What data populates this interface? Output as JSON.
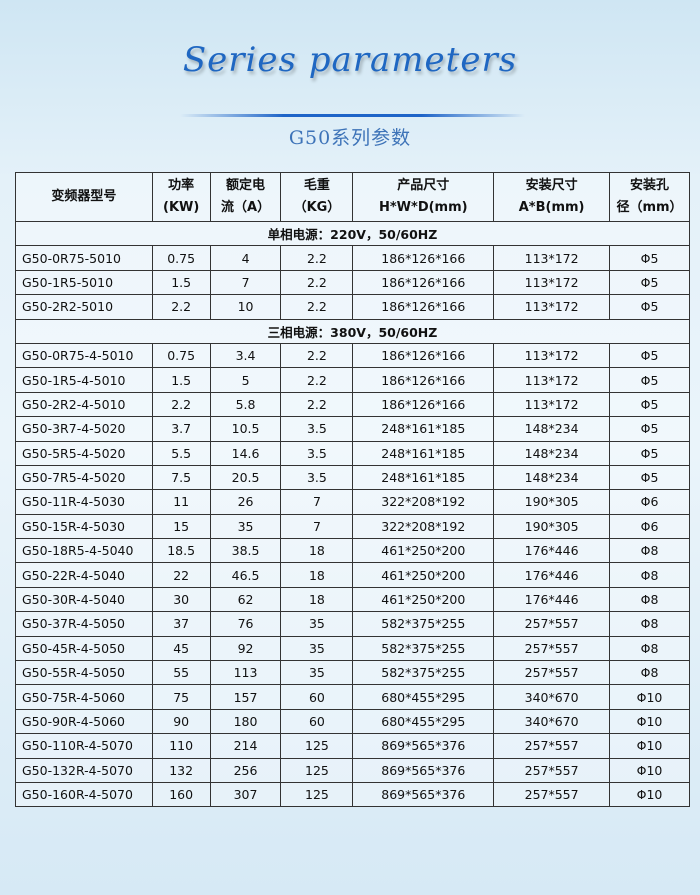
{
  "header": {
    "script_title": "Series parameters",
    "subtitle": "G50系列参数"
  },
  "table": {
    "columns": [
      [
        "变频器型号"
      ],
      [
        "功率",
        "(KW)"
      ],
      [
        "额定电",
        "流（A）"
      ],
      [
        "毛重",
        "（KG）"
      ],
      [
        "产品尺寸",
        "H*W*D(mm)"
      ],
      [
        "安装尺寸",
        "A*B(mm)"
      ],
      [
        "安装孔",
        "径（mm）"
      ]
    ],
    "groups": [
      {
        "title": "单相电源：220V，50/60HZ",
        "rows": [
          [
            "G50-0R75-5010",
            "0.75",
            "4",
            "2.2",
            "186*126*166",
            "113*172",
            "Φ5"
          ],
          [
            "G50-1R5-5010",
            "1.5",
            "7",
            "2.2",
            "186*126*166",
            "113*172",
            "Φ5"
          ],
          [
            "G50-2R2-5010",
            "2.2",
            "10",
            "2.2",
            "186*126*166",
            "113*172",
            "Φ5"
          ]
        ]
      },
      {
        "title": "三相电源：380V，50/60HZ",
        "rows": [
          [
            "G50-0R75-4-5010",
            "0.75",
            "3.4",
            "2.2",
            "186*126*166",
            "113*172",
            "Φ5"
          ],
          [
            "G50-1R5-4-5010",
            "1.5",
            "5",
            "2.2",
            "186*126*166",
            "113*172",
            "Φ5"
          ],
          [
            "G50-2R2-4-5010",
            "2.2",
            "5.8",
            "2.2",
            "186*126*166",
            "113*172",
            "Φ5"
          ],
          [
            "G50-3R7-4-5020",
            "3.7",
            "10.5",
            "3.5",
            "248*161*185",
            "148*234",
            "Φ5"
          ],
          [
            "G50-5R5-4-5020",
            "5.5",
            "14.6",
            "3.5",
            "248*161*185",
            "148*234",
            "Φ5"
          ],
          [
            "G50-7R5-4-5020",
            "7.5",
            "20.5",
            "3.5",
            "248*161*185",
            "148*234",
            "Φ5"
          ],
          [
            "G50-11R-4-5030",
            "11",
            "26",
            "7",
            "322*208*192",
            "190*305",
            "Φ6"
          ],
          [
            "G50-15R-4-5030",
            "15",
            "35",
            "7",
            "322*208*192",
            "190*305",
            "Φ6"
          ],
          [
            "G50-18R5-4-5040",
            "18.5",
            "38.5",
            "18",
            "461*250*200",
            "176*446",
            "Φ8"
          ],
          [
            "G50-22R-4-5040",
            "22",
            "46.5",
            "18",
            "461*250*200",
            "176*446",
            "Φ8"
          ],
          [
            "G50-30R-4-5040",
            "30",
            "62",
            "18",
            "461*250*200",
            "176*446",
            "Φ8"
          ],
          [
            "G50-37R-4-5050",
            "37",
            "76",
            "35",
            "582*375*255",
            "257*557",
            "Φ8"
          ],
          [
            "G50-45R-4-5050",
            "45",
            "92",
            "35",
            "582*375*255",
            "257*557",
            "Φ8"
          ],
          [
            "G50-55R-4-5050",
            "55",
            "113",
            "35",
            "582*375*255",
            "257*557",
            "Φ8"
          ],
          [
            "G50-75R-4-5060",
            "75",
            "157",
            "60",
            "680*455*295",
            "340*670",
            "Φ10"
          ],
          [
            "G50-90R-4-5060",
            "90",
            "180",
            "60",
            "680*455*295",
            "340*670",
            "Φ10"
          ],
          [
            "G50-110R-4-5070",
            "110",
            "214",
            "125",
            "869*565*376",
            "257*557",
            "Φ10"
          ],
          [
            "G50-132R-4-5070",
            "132",
            "256",
            "125",
            "869*565*376",
            "257*557",
            "Φ10"
          ],
          [
            "G50-160R-4-5070",
            "160",
            "307",
            "125",
            "869*565*376",
            "257*557",
            "Φ10"
          ]
        ]
      }
    ]
  }
}
